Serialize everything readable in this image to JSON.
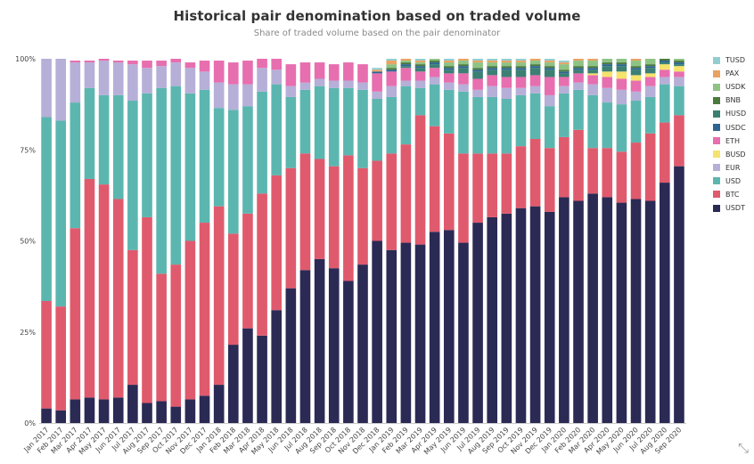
{
  "chart_data": {
    "type": "bar",
    "stacked": true,
    "title": "Historical pair denomination based on traded volume",
    "subtitle": "Share of traded volume based on the pair denominator",
    "ylim": [
      0,
      100
    ],
    "yticks": [
      "0%",
      "25%",
      "50%",
      "75%",
      "100%"
    ],
    "grid": false,
    "legend_position": "right",
    "categories": [
      "Jan 2017",
      "Feb 2017",
      "Mar 2017",
      "Apr 2017",
      "May 2017",
      "Jun 2017",
      "Jul 2017",
      "Aug 2017",
      "Sep 2017",
      "Oct 2017",
      "Nov 2017",
      "Dec 2017",
      "Jan 2018",
      "Feb 2018",
      "Mar 2018",
      "Apr 2018",
      "May 2018",
      "Jun 2018",
      "Jul 2018",
      "Aug 2018",
      "Sep 2018",
      "Oct 2018",
      "Nov 2018",
      "Dec 2018",
      "Jan 2019",
      "Feb 2019",
      "Mar 2019",
      "Apr 2019",
      "May 2019",
      "Jun 2019",
      "Jul 2019",
      "Aug 2019",
      "Sep 2019",
      "Oct 2019",
      "Nov 2019",
      "Dec 2019",
      "Jan 2020",
      "Feb 2020",
      "Mar 2020",
      "Apr 2020",
      "May 2020",
      "Jun 2020",
      "Jul 2020",
      "Aug 2020",
      "Sep 2020"
    ],
    "series": [
      {
        "name": "USDT",
        "color": "#2b2a55",
        "values": [
          4,
          3.5,
          6.5,
          7,
          6.5,
          7,
          10.5,
          5.5,
          6,
          4.5,
          6.5,
          7.5,
          10.5,
          21.5,
          26,
          24,
          31,
          37,
          42,
          45,
          42.5,
          39,
          43.5,
          50,
          47.5,
          49.5,
          49,
          52.5,
          53,
          49.5,
          55,
          56.5,
          57.5,
          59,
          59.5,
          58,
          62,
          61,
          63,
          62,
          60.5,
          61.5,
          61,
          66,
          70.5
        ]
      },
      {
        "name": "BTC",
        "color": "#e05a6d",
        "values": [
          29.5,
          28.5,
          47,
          60,
          59,
          54.5,
          37,
          51,
          35,
          39,
          43.5,
          47.5,
          49,
          30.5,
          31.5,
          39,
          37,
          33,
          32,
          27.5,
          28,
          34.5,
          26.5,
          22,
          26.5,
          27,
          35.5,
          29,
          26.5,
          24.5,
          19,
          17.5,
          16.5,
          17,
          18.5,
          17.5,
          16.5,
          19.5,
          12.5,
          13.5,
          14,
          15.5,
          18.5,
          16.5,
          14
        ]
      },
      {
        "name": "USD",
        "color": "#5cb6b0",
        "values": [
          50.5,
          51,
          34.5,
          25,
          24.5,
          28.5,
          41,
          34,
          51,
          49,
          40.5,
          36.5,
          27,
          34,
          29.5,
          28,
          25,
          19.5,
          17.5,
          20,
          21.5,
          18.5,
          21.5,
          17,
          15.5,
          16,
          7.5,
          11.5,
          12,
          17,
          15.5,
          15.5,
          15,
          14,
          12.5,
          11.5,
          12,
          11,
          14.5,
          12.5,
          13,
          11.5,
          10,
          10.5,
          8
        ]
      },
      {
        "name": "EUR",
        "color": "#b6afd8",
        "values": [
          16,
          17,
          11,
          7,
          9.5,
          9,
          10,
          7,
          6,
          6.5,
          7,
          5,
          7,
          7,
          6,
          6.5,
          4,
          3,
          2,
          2,
          2,
          2,
          2,
          2,
          3,
          1.5,
          2,
          2,
          2,
          2,
          2,
          3,
          3,
          2,
          2,
          3,
          2,
          2,
          3,
          4,
          4,
          2.5,
          3,
          2,
          2.5
        ]
      },
      {
        "name": "ETH",
        "color": "#e76eaf",
        "values": [
          0,
          0,
          0.5,
          0.5,
          0.5,
          0.5,
          1,
          2,
          1.5,
          1,
          1.5,
          3,
          6,
          6,
          6.5,
          7.5,
          6.5,
          6,
          5.5,
          4.5,
          4.5,
          5,
          5,
          5,
          4,
          3.5,
          2.5,
          2.5,
          2.5,
          3,
          3,
          3,
          3,
          3,
          3,
          5,
          2.5,
          2.5,
          2.5,
          3,
          3,
          3,
          2.5,
          2,
          1.5
        ]
      },
      {
        "name": "BUSD",
        "color": "#f5e36b",
        "values": [
          0,
          0,
          0,
          0,
          0,
          0,
          0,
          0,
          0,
          0,
          0,
          0,
          0,
          0,
          0,
          0,
          0,
          0,
          0,
          0,
          0,
          0,
          0,
          0,
          0,
          0,
          0,
          0,
          0,
          0,
          0,
          0,
          0,
          0,
          0,
          0,
          0,
          0,
          0.5,
          1.5,
          2,
          1.5,
          1,
          1.5,
          1.5
        ]
      },
      {
        "name": "HUSD",
        "color": "#3b8073",
        "values": [
          0,
          0,
          0,
          0,
          0,
          0,
          0,
          0,
          0,
          0,
          0,
          0,
          0,
          0,
          0,
          0,
          0,
          0,
          0,
          0,
          0,
          0,
          0,
          0,
          0,
          0.5,
          1,
          1,
          1,
          1.5,
          2,
          1.5,
          2,
          2,
          2,
          2,
          1,
          1,
          1,
          1.5,
          1.5,
          1.5,
          1.5,
          0.5,
          0.5
        ]
      },
      {
        "name": "USDC",
        "color": "#2d6592",
        "values": [
          0,
          0,
          0,
          0,
          0,
          0,
          0,
          0,
          0,
          0,
          0,
          0,
          0,
          0,
          0,
          0,
          0,
          0,
          0,
          0,
          0,
          0,
          0,
          0.5,
          0.5,
          0.5,
          0.5,
          0.5,
          0.5,
          0.5,
          0.5,
          0.5,
          0.5,
          0.5,
          0.5,
          0.5,
          0.5,
          0.5,
          0.5,
          0.5,
          0.5,
          0.5,
          0.5,
          0.5,
          0.5
        ]
      },
      {
        "name": "BNB",
        "color": "#4a7a3e",
        "values": [
          0,
          0,
          0,
          0,
          0,
          0,
          0,
          0,
          0,
          0,
          0,
          0,
          0,
          0,
          0,
          0,
          0,
          0,
          0,
          0,
          0,
          0,
          0,
          0,
          0.5,
          0.5,
          0.5,
          0.5,
          0.5,
          0.5,
          0.5,
          0.5,
          0.5,
          0.5,
          0.5,
          0.5,
          0.5,
          0.5,
          0.5,
          0.5,
          0.5,
          0.5,
          0.5,
          0.5,
          0.5
        ]
      },
      {
        "name": "USDK",
        "color": "#8ec384",
        "values": [
          0,
          0,
          0,
          0,
          0,
          0,
          0,
          0,
          0,
          0,
          0,
          0,
          0,
          0,
          0,
          0,
          0,
          0,
          0,
          0,
          0,
          0,
          0,
          0,
          1,
          0.5,
          0.5,
          0.5,
          1,
          1,
          1.5,
          1,
          1,
          1,
          1,
          1,
          1.5,
          1.5,
          1.5,
          1.5,
          1.5,
          1.5,
          1.5,
          1,
          0.5
        ]
      },
      {
        "name": "PAX",
        "color": "#e9a262",
        "values": [
          0,
          0,
          0,
          0,
          0,
          0,
          0,
          0,
          0,
          0,
          0,
          0,
          0,
          0,
          0,
          0,
          0,
          0,
          0,
          0,
          0,
          0,
          0,
          0.5,
          1,
          0.5,
          0.5,
          0.5,
          0.5,
          0.5,
          0.5,
          0.5,
          0.5,
          0.5,
          0.5,
          0.5,
          0.5,
          0.5,
          0.5,
          0.5,
          0.5,
          0.5,
          0.5,
          0.5,
          0.5
        ]
      },
      {
        "name": "TUSD",
        "color": "#93cdd2",
        "values": [
          0,
          0,
          0,
          0,
          0,
          0,
          0,
          0,
          0,
          0,
          0,
          0,
          0,
          0,
          0,
          0,
          0,
          0,
          0,
          0,
          0,
          0,
          0,
          0.5,
          0.5,
          0.5,
          0.5,
          0.5,
          0.5,
          0.5,
          0.5,
          0.5,
          0.5,
          0.5,
          0.5,
          0.5,
          0.5,
          0.5,
          0.5,
          0.5,
          0.5,
          0.5,
          0.5,
          0.5,
          0.5
        ]
      }
    ],
    "legend_order": [
      "TUSD",
      "PAX",
      "USDK",
      "BNB",
      "HUSD",
      "USDC",
      "ETH",
      "BUSD",
      "EUR",
      "USD",
      "BTC",
      "USDT"
    ]
  },
  "expand_icon": "expand-arrows-icon"
}
